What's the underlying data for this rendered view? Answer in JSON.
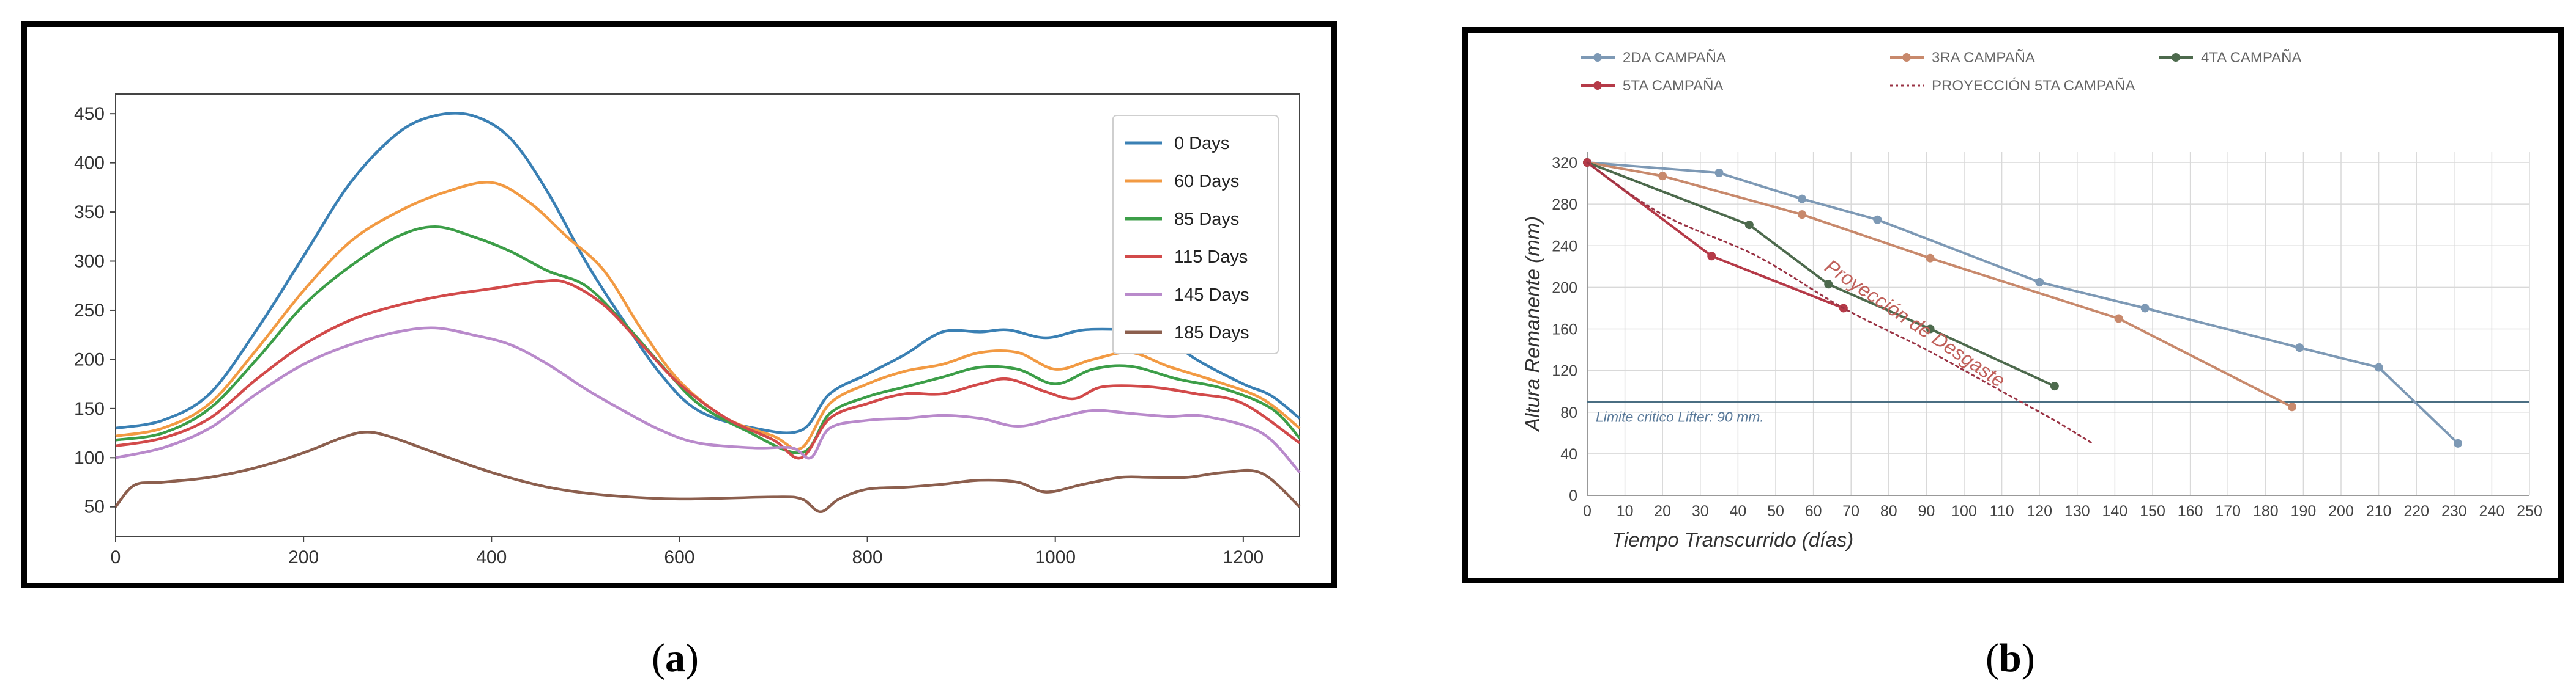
{
  "captions": {
    "a": "a",
    "b": "b"
  },
  "chart_data": [
    {
      "id": "a",
      "type": "line",
      "title": "",
      "xlabel": "",
      "ylabel": "",
      "xlim": [
        0,
        1260
      ],
      "ylim": [
        20,
        470
      ],
      "xticks": [
        0,
        200,
        400,
        600,
        800,
        1000,
        1200
      ],
      "yticks": [
        50,
        100,
        150,
        200,
        250,
        300,
        350,
        400,
        450
      ],
      "grid": false,
      "legend": "top-right",
      "series": [
        {
          "name": "0 Days",
          "color": "#3a80b4",
          "points": [
            [
              0,
              130
            ],
            [
              50,
              138
            ],
            [
              100,
              165
            ],
            [
              150,
              230
            ],
            [
              200,
              305
            ],
            [
              250,
              380
            ],
            [
              300,
              430
            ],
            [
              340,
              448
            ],
            [
              380,
              448
            ],
            [
              420,
              425
            ],
            [
              460,
              370
            ],
            [
              500,
              300
            ],
            [
              540,
              240
            ],
            [
              580,
              185
            ],
            [
              620,
              148
            ],
            [
              680,
              130
            ],
            [
              730,
              128
            ],
            [
              760,
              165
            ],
            [
              800,
              185
            ],
            [
              840,
              205
            ],
            [
              880,
              228
            ],
            [
              920,
              228
            ],
            [
              950,
              230
            ],
            [
              990,
              222
            ],
            [
              1030,
              230
            ],
            [
              1080,
              230
            ],
            [
              1110,
              227
            ],
            [
              1150,
              200
            ],
            [
              1200,
              175
            ],
            [
              1230,
              163
            ],
            [
              1260,
              140
            ]
          ]
        },
        {
          "name": "60 Days",
          "color": "#f29a43",
          "points": [
            [
              0,
              122
            ],
            [
              50,
              130
            ],
            [
              100,
              155
            ],
            [
              150,
              210
            ],
            [
              200,
              270
            ],
            [
              250,
              320
            ],
            [
              300,
              350
            ],
            [
              350,
              370
            ],
            [
              400,
              380
            ],
            [
              440,
              360
            ],
            [
              480,
              325
            ],
            [
              520,
              290
            ],
            [
              560,
              230
            ],
            [
              600,
              178
            ],
            [
              650,
              140
            ],
            [
              700,
              122
            ],
            [
              730,
              110
            ],
            [
              760,
              155
            ],
            [
              800,
              175
            ],
            [
              840,
              188
            ],
            [
              880,
              195
            ],
            [
              920,
              207
            ],
            [
              960,
              207
            ],
            [
              1000,
              190
            ],
            [
              1040,
              200
            ],
            [
              1080,
              207
            ],
            [
              1120,
              193
            ],
            [
              1170,
              178
            ],
            [
              1220,
              160
            ],
            [
              1260,
              130
            ]
          ]
        },
        {
          "name": "85 Days",
          "color": "#3c9e48",
          "points": [
            [
              0,
              118
            ],
            [
              50,
              125
            ],
            [
              100,
              150
            ],
            [
              150,
              200
            ],
            [
              200,
              255
            ],
            [
              250,
              295
            ],
            [
              300,
              325
            ],
            [
              340,
              335
            ],
            [
              380,
              325
            ],
            [
              420,
              310
            ],
            [
              460,
              290
            ],
            [
              500,
              275
            ],
            [
              540,
              238
            ],
            [
              580,
              195
            ],
            [
              620,
              155
            ],
            [
              670,
              128
            ],
            [
              730,
              105
            ],
            [
              760,
              145
            ],
            [
              800,
              162
            ],
            [
              840,
              172
            ],
            [
              880,
              182
            ],
            [
              920,
              192
            ],
            [
              960,
              190
            ],
            [
              1000,
              175
            ],
            [
              1040,
              190
            ],
            [
              1080,
              193
            ],
            [
              1130,
              180
            ],
            [
              1180,
              170
            ],
            [
              1230,
              150
            ],
            [
              1260,
              120
            ]
          ]
        },
        {
          "name": "115 Days",
          "color": "#d24a4a",
          "points": [
            [
              0,
              112
            ],
            [
              50,
              120
            ],
            [
              100,
              140
            ],
            [
              150,
              180
            ],
            [
              200,
              215
            ],
            [
              250,
              240
            ],
            [
              300,
              255
            ],
            [
              350,
              265
            ],
            [
              400,
              272
            ],
            [
              450,
              279
            ],
            [
              480,
              278
            ],
            [
              520,
              255
            ],
            [
              560,
              215
            ],
            [
              600,
              175
            ],
            [
              650,
              140
            ],
            [
              700,
              118
            ],
            [
              730,
              100
            ],
            [
              760,
              140
            ],
            [
              800,
              155
            ],
            [
              840,
              165
            ],
            [
              880,
              165
            ],
            [
              920,
              175
            ],
            [
              950,
              180
            ],
            [
              990,
              167
            ],
            [
              1020,
              160
            ],
            [
              1050,
              172
            ],
            [
              1100,
              172
            ],
            [
              1150,
              165
            ],
            [
              1200,
              155
            ],
            [
              1260,
              115
            ]
          ]
        },
        {
          "name": "145 Days",
          "color": "#b98acb",
          "points": [
            [
              0,
              100
            ],
            [
              50,
              110
            ],
            [
              100,
              130
            ],
            [
              150,
              165
            ],
            [
              200,
              195
            ],
            [
              250,
              215
            ],
            [
              300,
              228
            ],
            [
              340,
              232
            ],
            [
              380,
              225
            ],
            [
              420,
              215
            ],
            [
              460,
              195
            ],
            [
              500,
              170
            ],
            [
              540,
              148
            ],
            [
              580,
              128
            ],
            [
              620,
              115
            ],
            [
              680,
              110
            ],
            [
              720,
              110
            ],
            [
              740,
              100
            ],
            [
              760,
              130
            ],
            [
              800,
              138
            ],
            [
              840,
              140
            ],
            [
              880,
              143
            ],
            [
              920,
              140
            ],
            [
              960,
              132
            ],
            [
              1000,
              140
            ],
            [
              1040,
              148
            ],
            [
              1080,
              145
            ],
            [
              1120,
              142
            ],
            [
              1160,
              142
            ],
            [
              1220,
              125
            ],
            [
              1260,
              85
            ]
          ]
        },
        {
          "name": "185 Days",
          "color": "#8c5f4e",
          "points": [
            [
              0,
              50
            ],
            [
              20,
              72
            ],
            [
              50,
              75
            ],
            [
              100,
              80
            ],
            [
              150,
              90
            ],
            [
              200,
              105
            ],
            [
              240,
              120
            ],
            [
              265,
              126
            ],
            [
              290,
              122
            ],
            [
              340,
              105
            ],
            [
              400,
              85
            ],
            [
              460,
              70
            ],
            [
              520,
              62
            ],
            [
              600,
              58
            ],
            [
              700,
              60
            ],
            [
              730,
              58
            ],
            [
              750,
              45
            ],
            [
              770,
              58
            ],
            [
              800,
              68
            ],
            [
              840,
              70
            ],
            [
              880,
              73
            ],
            [
              920,
              77
            ],
            [
              960,
              75
            ],
            [
              990,
              65
            ],
            [
              1030,
              73
            ],
            [
              1070,
              80
            ],
            [
              1100,
              80
            ],
            [
              1140,
              80
            ],
            [
              1180,
              85
            ],
            [
              1220,
              84
            ],
            [
              1260,
              50
            ]
          ]
        }
      ]
    },
    {
      "id": "b",
      "type": "line",
      "title": "",
      "xlabel": "Tiempo Transcurrido (días)",
      "ylabel": "Altura Remanente (mm)",
      "xlim": [
        0,
        250
      ],
      "ylim": [
        0,
        330
      ],
      "xticks": [
        0,
        10,
        20,
        30,
        40,
        50,
        60,
        70,
        80,
        90,
        100,
        110,
        120,
        130,
        140,
        150,
        160,
        170,
        180,
        190,
        200,
        210,
        220,
        230,
        240,
        250
      ],
      "yticks": [
        0,
        40,
        80,
        120,
        160,
        200,
        240,
        280,
        320
      ],
      "grid": true,
      "legend": "top",
      "reference_line": {
        "y": 90,
        "label": "Limite critico Lifter: 90 mm.",
        "color": "#4a6e82"
      },
      "projection_label": "Proyección de Desgaste",
      "series": [
        {
          "name": "2DA CAMPAÑA",
          "color": "#7d99b5",
          "dash": false,
          "points": [
            [
              0,
              320
            ],
            [
              35,
              310
            ],
            [
              57,
              285
            ],
            [
              77,
              265
            ],
            [
              120,
              205
            ],
            [
              148,
              180
            ],
            [
              189,
              142
            ],
            [
              210,
              123
            ],
            [
              231,
              50
            ]
          ]
        },
        {
          "name": "3RA CAMPAÑA",
          "color": "#c8896c",
          "dash": false,
          "points": [
            [
              0,
              320
            ],
            [
              20,
              307
            ],
            [
              57,
              270
            ],
            [
              91,
              228
            ],
            [
              141,
              170
            ],
            [
              187,
              85
            ]
          ]
        },
        {
          "name": "4TA CAMPAÑA",
          "color": "#4d6a4d",
          "dash": false,
          "points": [
            [
              0,
              320
            ],
            [
              43,
              260
            ],
            [
              64,
              203
            ],
            [
              91,
              160
            ],
            [
              124,
              105
            ]
          ]
        },
        {
          "name": "5TA CAMPAÑA",
          "color": "#b53a48",
          "dash": false,
          "points": [
            [
              0,
              320
            ],
            [
              33,
              230
            ],
            [
              68,
              180
            ]
          ]
        },
        {
          "name": "PROYECCIÓN 5TA CAMPAÑA",
          "color": "#9a3344",
          "dash": true,
          "points": [
            [
              0,
              320
            ],
            [
              20,
              270
            ],
            [
              45,
              230
            ],
            [
              68,
              180
            ],
            [
              90,
              140
            ],
            [
              110,
              100
            ],
            [
              125,
              70
            ],
            [
              134,
              50
            ]
          ]
        }
      ]
    }
  ]
}
